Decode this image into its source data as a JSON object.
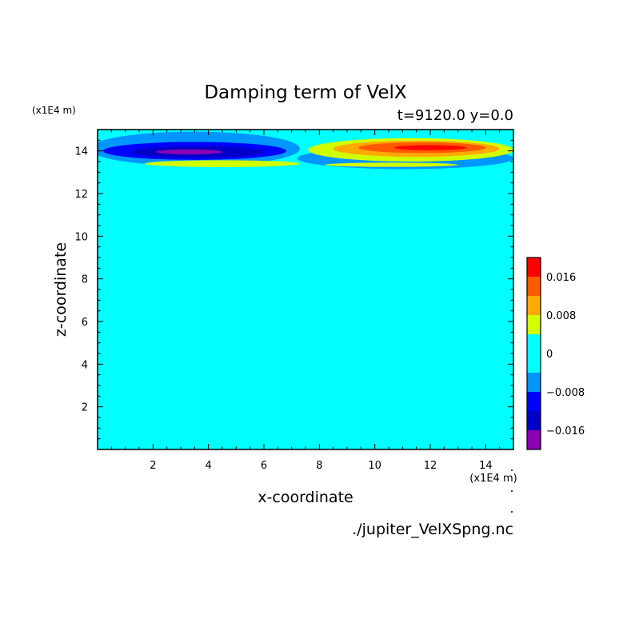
{
  "chart_data": {
    "type": "heatmap",
    "title": "Damping term of VelX",
    "subtitle": "t=9120.0 y=0.0",
    "xlabel": "x-coordinate",
    "ylabel": "z-coordinate",
    "x_unit": "(x1E4 m)",
    "y_unit": "(x1E4 m)",
    "source": "./jupiter_VelXSpng.nc",
    "xlim": [
      0,
      15
    ],
    "ylim": [
      0,
      15
    ],
    "x_ticks": [
      2,
      4,
      6,
      8,
      10,
      12,
      14
    ],
    "y_ticks": [
      2,
      4,
      6,
      8,
      10,
      12,
      14
    ],
    "background_level": 0,
    "colorbar": {
      "colors": [
        "#8b00b5",
        "#0000c8",
        "#0000ff",
        "#0096ff",
        "#00ffff",
        "#d2ff00",
        "#ffaa00",
        "#ff5a00",
        "#ff0000",
        "#ffaaaa"
      ],
      "bounds": [
        -0.02,
        -0.016,
        -0.012,
        -0.008,
        -0.004,
        0.004,
        0.008,
        0.012,
        0.016,
        0.02
      ],
      "tick_values": [
        0.016,
        0.008,
        0,
        -0.008,
        -0.016
      ],
      "tick_labels": [
        "0.016",
        "0.008",
        "0",
        "−0.008",
        "−0.016"
      ]
    },
    "regions": [
      {
        "name": "cyan-band-left",
        "level": -0.006,
        "cx": 3.5,
        "cz": 14.1,
        "rx": 3.8,
        "rz": 0.8
      },
      {
        "name": "blue-left",
        "level": -0.01,
        "cx": 3.5,
        "cz": 14.0,
        "rx": 3.3,
        "rz": 0.42
      },
      {
        "name": "darkblue-left",
        "level": -0.014,
        "cx": 3.6,
        "cz": 13.95,
        "rx": 2.4,
        "rz": 0.27
      },
      {
        "name": "purple-left",
        "level": -0.018,
        "cx": 3.3,
        "cz": 13.95,
        "rx": 1.2,
        "rz": 0.12
      },
      {
        "name": "orange-left",
        "level": 0.006,
        "cx": 4.5,
        "cz": 13.4,
        "rx": 2.8,
        "rz": 0.16
      },
      {
        "name": "cyan-band-right",
        "level": -0.006,
        "cx": 11.1,
        "cz": 13.65,
        "rx": 3.9,
        "rz": 0.5
      },
      {
        "name": "orange-right",
        "level": 0.006,
        "cx": 11.3,
        "cz": 14.05,
        "rx": 3.7,
        "rz": 0.55
      },
      {
        "name": "red-orange-right",
        "level": 0.01,
        "cx": 11.5,
        "cz": 14.1,
        "rx": 3.0,
        "rz": 0.38
      },
      {
        "name": "red-right",
        "level": 0.014,
        "cx": 11.7,
        "cz": 14.15,
        "rx": 2.3,
        "rz": 0.25
      },
      {
        "name": "pink-right",
        "level": 0.018,
        "cx": 12.0,
        "cz": 14.15,
        "rx": 1.3,
        "rz": 0.12
      },
      {
        "name": "orange-lower-right",
        "level": 0.006,
        "cx": 10.6,
        "cz": 13.35,
        "rx": 2.4,
        "rz": 0.1
      }
    ]
  }
}
